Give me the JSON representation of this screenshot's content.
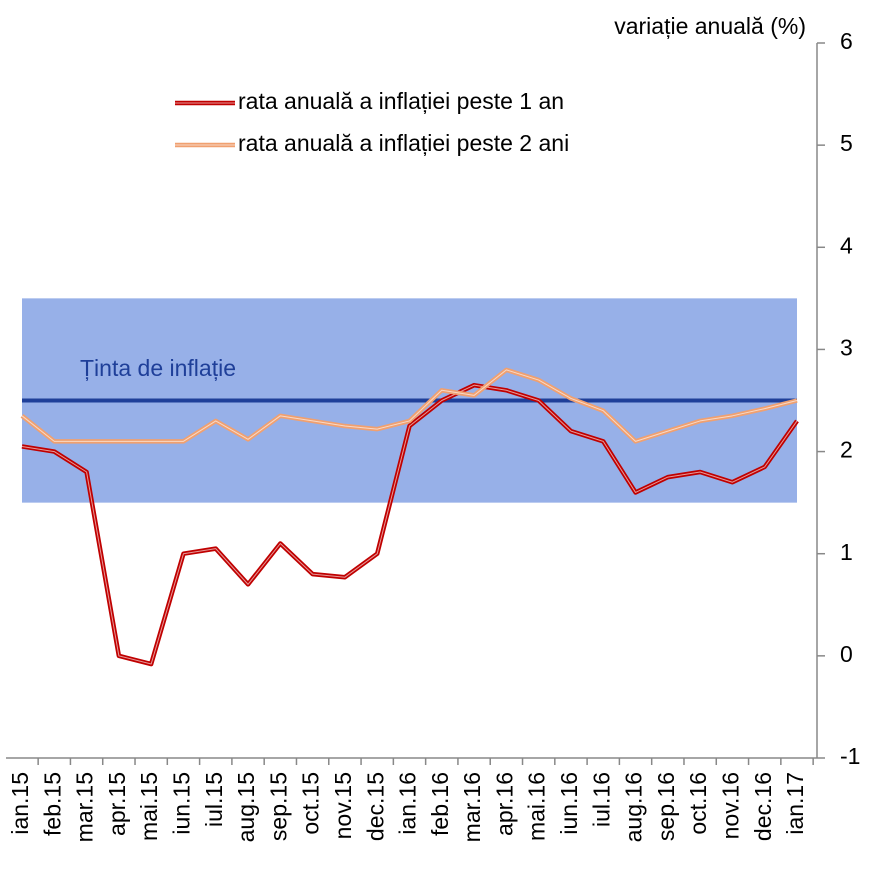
{
  "chart_data": {
    "type": "line",
    "y_axis_label": "variație anuală (%)",
    "categories": [
      "ian.15",
      "feb.15",
      "mar.15",
      "apr.15",
      "mai.15",
      "iun.15",
      "iul.15",
      "aug.15",
      "sep.15",
      "oct.15",
      "nov.15",
      "dec.15",
      "ian.16",
      "feb.16",
      "mar.16",
      "apr.16",
      "mai.16",
      "iun.16",
      "iul.16",
      "aug.16",
      "sep.16",
      "oct.16",
      "nov.16",
      "dec.16",
      "ian.17"
    ],
    "series": [
      {
        "name": "rata anuală a inflației peste 1 an",
        "color": "#c00000",
        "values": [
          2.05,
          2.0,
          1.8,
          0.0,
          -0.08,
          1.0,
          1.05,
          0.7,
          1.1,
          0.8,
          0.77,
          1.0,
          2.25,
          2.5,
          2.65,
          2.6,
          2.5,
          2.2,
          2.1,
          1.6,
          1.75,
          1.8,
          1.7,
          1.85,
          2.3
        ]
      },
      {
        "name": "rata anuală a inflației peste 2 ani",
        "color": "#f0a070",
        "values": [
          2.35,
          2.1,
          2.1,
          2.1,
          2.1,
          2.1,
          2.3,
          2.12,
          2.35,
          2.3,
          2.25,
          2.22,
          2.3,
          2.6,
          2.55,
          2.8,
          2.7,
          2.52,
          2.4,
          2.1,
          2.2,
          2.3,
          2.35,
          2.42,
          2.5
        ]
      }
    ],
    "target": {
      "label": "Ținta de inflație",
      "value": 2.5,
      "band": [
        1.5,
        3.5
      ],
      "color": "#1f3f99",
      "band_color": "#97b0e8"
    },
    "ylim": [
      -1,
      6
    ],
    "yticks": [
      -1,
      0,
      1,
      2,
      3,
      4,
      5,
      6
    ]
  }
}
